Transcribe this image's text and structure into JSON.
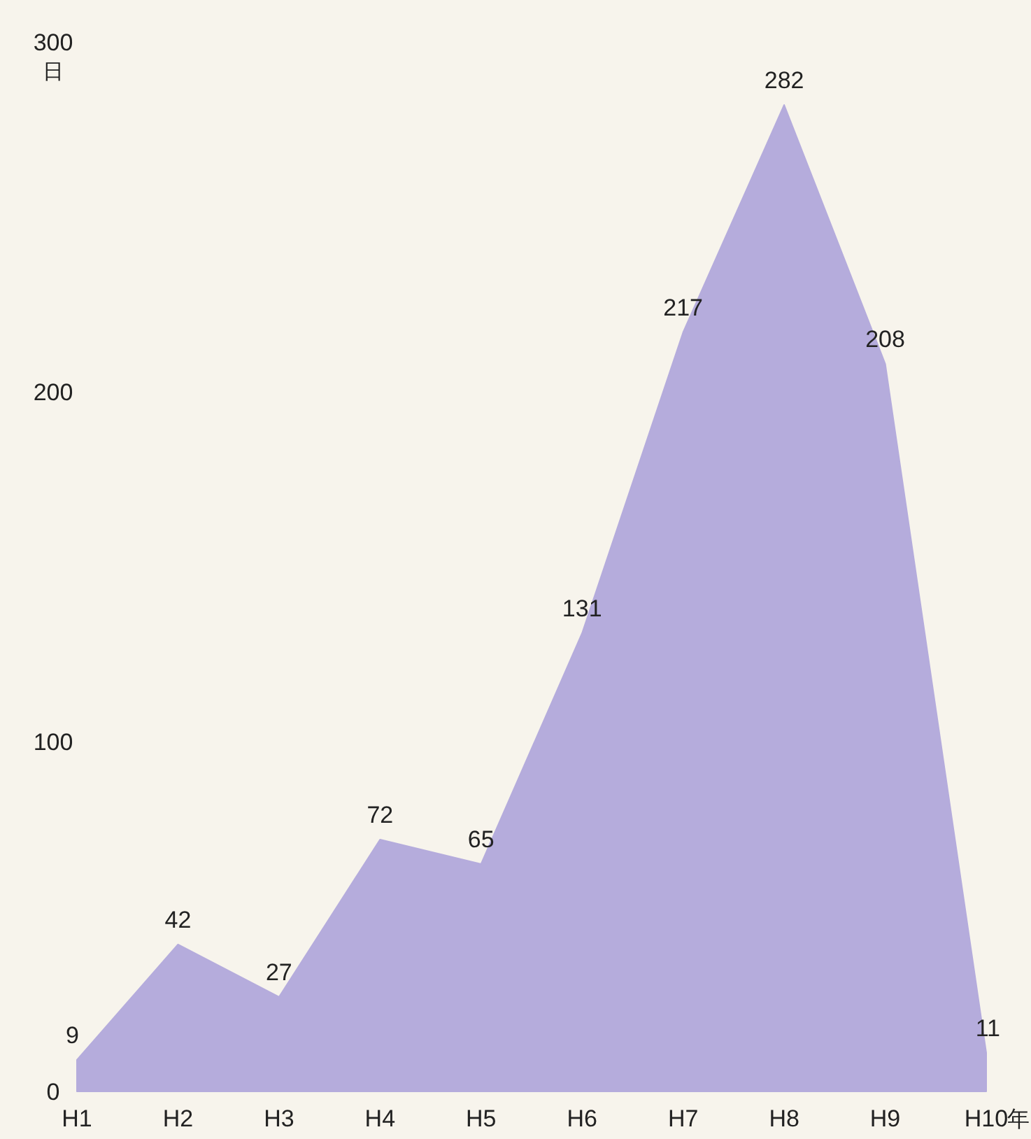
{
  "chart_data": {
    "type": "area",
    "categories": [
      "H1",
      "H2",
      "H3",
      "H4",
      "H5",
      "H6",
      "H7",
      "H8",
      "H9",
      "H10"
    ],
    "values": [
      9,
      42,
      27,
      72,
      65,
      131,
      217,
      282,
      208,
      11
    ],
    "color": "#b5acdc",
    "ylabel": "日",
    "xlabel": "年",
    "ylim": [
      0,
      300
    ],
    "yticks": [
      0,
      100,
      200,
      300
    ],
    "data_labels": true
  }
}
